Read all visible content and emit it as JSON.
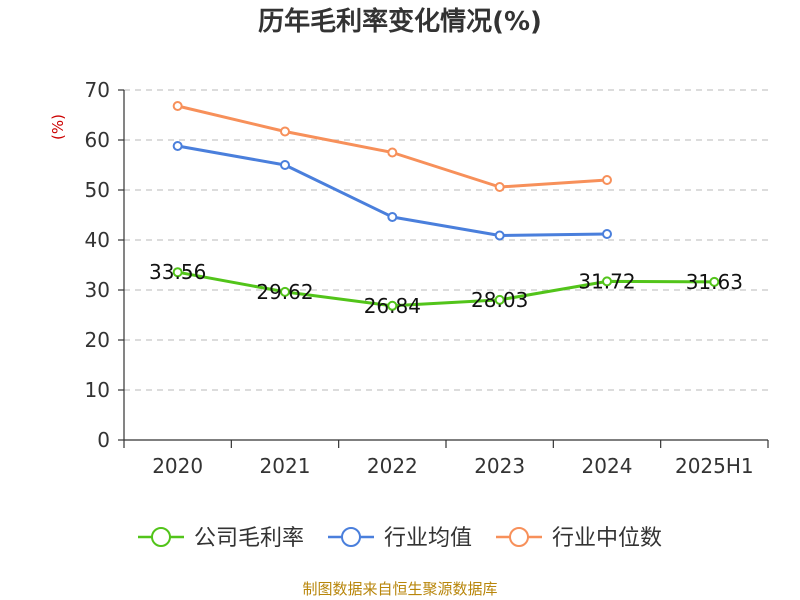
{
  "chart_data": {
    "type": "line",
    "title": "历年毛利率变化情况(%)",
    "ylabel": "(%)",
    "xlabel": "",
    "categories": [
      "2020",
      "2021",
      "2022",
      "2023",
      "2024",
      "2025H1"
    ],
    "ylim": [
      0,
      70
    ],
    "yticks": [
      0,
      10,
      20,
      30,
      40,
      50,
      60,
      70
    ],
    "grid": true,
    "legend_position": "bottom",
    "series": [
      {
        "name": "公司毛利率",
        "color": "#52c41a",
        "values": [
          33.56,
          29.62,
          26.84,
          28.03,
          31.72,
          31.63
        ],
        "labels": [
          "33.56",
          "29.62",
          "26.84",
          "28.03",
          "31.72",
          "31.63"
        ]
      },
      {
        "name": "行业均值",
        "color": "#4a7fdc",
        "values": [
          58.8,
          55.0,
          44.6,
          40.9,
          41.2,
          null
        ]
      },
      {
        "name": "行业中位数",
        "color": "#f7905a",
        "values": [
          66.8,
          61.7,
          57.5,
          50.6,
          52.0,
          null
        ]
      }
    ]
  },
  "source": "制图数据来自恒生聚源数据库"
}
